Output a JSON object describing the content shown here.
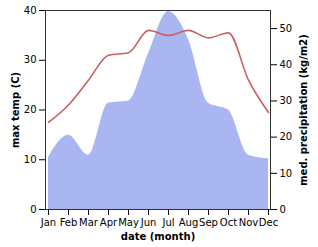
{
  "chart_data": {
    "type": "line",
    "categories": [
      "Jan",
      "Feb",
      "Mar",
      "Apr",
      "May",
      "Jun",
      "Jul",
      "Aug",
      "Sep",
      "Oct",
      "Nov",
      "Dec"
    ],
    "x_label": "date (month)",
    "y_label": "max temp (C)",
    "y2_label": "med. precipitation (kg/m2)",
    "ylim": [
      0,
      40
    ],
    "yticks": [
      0,
      10,
      20,
      30,
      40
    ],
    "y2lim": [
      0,
      55
    ],
    "y2ticks": [
      0,
      10,
      20,
      30,
      40,
      50
    ],
    "series": [
      {
        "name": "med. precipitation",
        "type": "area",
        "axis": "y2",
        "color": "#aab6f2",
        "values": [
          14.4,
          20.5,
          15,
          29.4,
          30,
          43,
          54.7,
          47,
          29.4,
          27.5,
          15,
          14
        ]
      },
      {
        "name": "max temp",
        "type": "line",
        "color": "#c9605d",
        "values": [
          17.5,
          21,
          26,
          31,
          31.5,
          36,
          35,
          36,
          34.5,
          35.5,
          26,
          19.5
        ]
      }
    ]
  }
}
